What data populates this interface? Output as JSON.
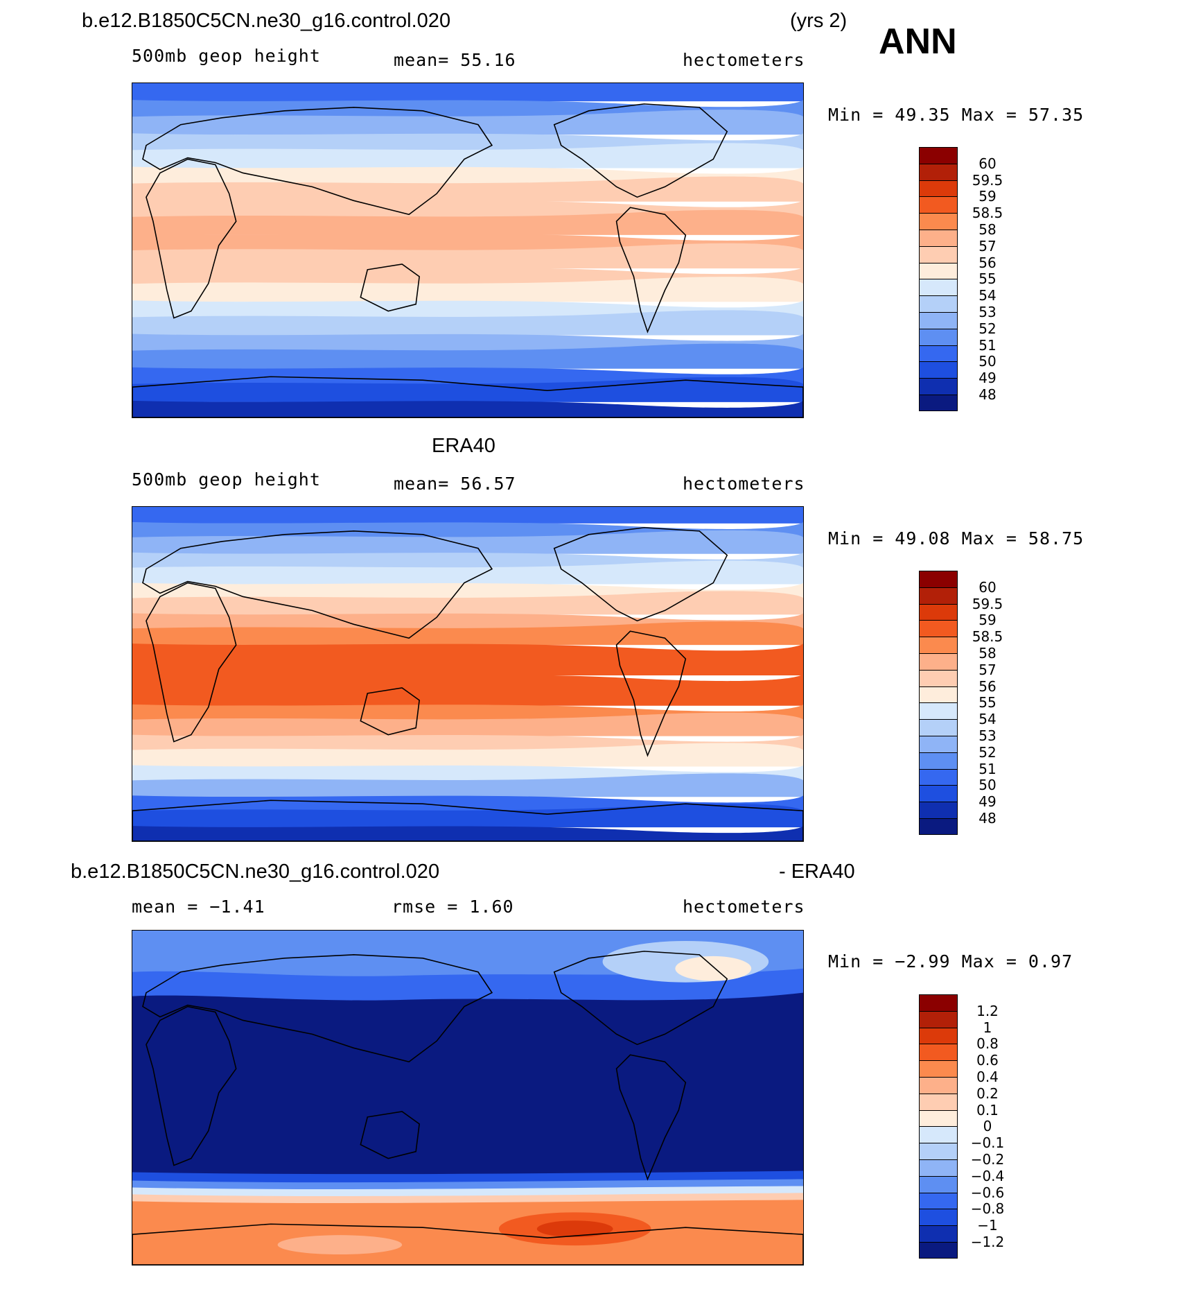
{
  "header": {
    "case": "b.e12.B1850C5CN.ne30_g16.control.020",
    "yrs": "(yrs 2)",
    "season": "ANN"
  },
  "panels": [
    {
      "id": "model",
      "variable": "500mb geop height",
      "stat": "mean=  55.16",
      "units": "hectometers",
      "minmax": "Min =   49.35 Max =   57.35",
      "levels": [
        "60",
        "59.5",
        "59",
        "58.5",
        "58",
        "57",
        "56",
        "55",
        "54",
        "53",
        "52",
        "51",
        "50",
        "49",
        "48"
      ],
      "colors": [
        "#8b0000",
        "#b22008",
        "#dc3a0a",
        "#f25a20",
        "#fb8a4e",
        "#fdb08a",
        "#fecdb2",
        "#feeddc",
        "#d6e8fb",
        "#b4d0f8",
        "#8fb4f6",
        "#5e8ff2",
        "#3568f0",
        "#1e4fe0",
        "#0f2fb0",
        "#0a1a80"
      ],
      "bands": [
        2,
        3,
        6,
        7,
        8,
        9,
        9,
        8,
        7,
        6,
        5,
        4,
        3,
        2,
        1
      ]
    },
    {
      "id": "obs",
      "title": "ERA40",
      "variable": "500mb geop height",
      "stat": "mean=  56.57",
      "units": "hectometers",
      "minmax": "Min =   49.08 Max =   58.75",
      "levels": [
        "60",
        "59.5",
        "59",
        "58.5",
        "58",
        "57",
        "56",
        "55",
        "54",
        "53",
        "52",
        "51",
        "50",
        "49",
        "48"
      ],
      "colors": [
        "#8b0000",
        "#b22008",
        "#dc3a0a",
        "#f25a20",
        "#fb8a4e",
        "#fdb08a",
        "#fecdb2",
        "#feeddc",
        "#d6e8fb",
        "#b4d0f8",
        "#8fb4f6",
        "#5e8ff2",
        "#3568f0",
        "#1e4fe0",
        "#0f2fb0",
        "#0a1a80"
      ],
      "bands": [
        3,
        5,
        7,
        9,
        12,
        13,
        13,
        12,
        9,
        7,
        5,
        4,
        3,
        2
      ]
    },
    {
      "id": "diff",
      "title_left": "b.e12.B1850C5CN.ne30_g16.control.020",
      "title_right": "- ERA40",
      "stat_left": "mean =   −1.41",
      "stat_mid": "rmse =    1.60",
      "units": "hectometers",
      "minmax": "Min =   −2.99 Max =    0.97",
      "levels": [
        "1.2",
        "1",
        "0.8",
        "0.6",
        "0.4",
        "0.2",
        "0.1",
        "0",
        "−0.1",
        "−0.2",
        "−0.4",
        "−0.6",
        "−0.8",
        "−1",
        "−1.2"
      ],
      "colors": [
        "#8b0000",
        "#b22008",
        "#dc3a0a",
        "#f25a20",
        "#fb8a4e",
        "#fdb08a",
        "#fecdb2",
        "#feeddc",
        "#d6e8fb",
        "#b4d0f8",
        "#8fb4f6",
        "#5e8ff2",
        "#3568f0",
        "#1e4fe0",
        "#0f2fb0",
        "#0a1a80"
      ]
    }
  ]
}
